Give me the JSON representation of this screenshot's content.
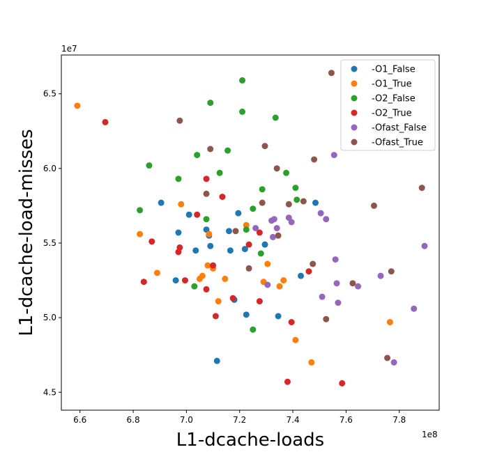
{
  "chart_data": {
    "type": "scatter",
    "title": "",
    "xlabel": "L1-dcache-loads",
    "ylabel": "L1-dcache-load-misses",
    "x_offset_label": "1e8",
    "y_offset_label": "1e7",
    "xlim": [
      6.53,
      7.95
    ],
    "ylim": [
      4.38,
      6.76
    ],
    "x_scale_factor": 100000000,
    "y_scale_factor": 10000000,
    "xticks": [
      "6.6",
      "6.8",
      "7.0",
      "7.2",
      "7.4",
      "7.6",
      "7.8"
    ],
    "xtick_values": [
      6.6,
      6.8,
      7.0,
      7.2,
      7.4,
      7.6,
      7.8
    ],
    "yticks": [
      "4.5",
      "5.0",
      "5.5",
      "6.0",
      "6.5"
    ],
    "ytick_values": [
      4.5,
      5.0,
      5.5,
      6.0,
      6.5
    ],
    "grid": false,
    "legend_position": "top-right",
    "series": [
      {
        "name": "-O1_False",
        "color": "#1f77b4",
        "points": [
          [
            6.905,
            5.77
          ],
          [
            6.96,
            5.25
          ],
          [
            6.97,
            5.57
          ],
          [
            7.01,
            5.69
          ],
          [
            7.035,
            5.45
          ],
          [
            7.075,
            5.59
          ],
          [
            7.085,
            5.55
          ],
          [
            7.09,
            5.48
          ],
          [
            7.115,
            4.71
          ],
          [
            7.16,
            5.58
          ],
          [
            7.165,
            5.45
          ],
          [
            7.18,
            5.12
          ],
          [
            7.195,
            5.7
          ],
          [
            7.22,
            5.46
          ],
          [
            7.225,
            5.02
          ],
          [
            7.295,
            5.49
          ],
          [
            7.345,
            5.01
          ],
          [
            7.43,
            5.28
          ],
          [
            7.485,
            5.77
          ]
        ]
      },
      {
        "name": "-O1_True",
        "color": "#ff7f0e",
        "points": [
          [
            6.59,
            6.42
          ],
          [
            6.825,
            5.56
          ],
          [
            6.89,
            5.3
          ],
          [
            6.98,
            5.76
          ],
          [
            7.05,
            5.26
          ],
          [
            7.06,
            5.28
          ],
          [
            7.08,
            5.35
          ],
          [
            7.085,
            5.56
          ],
          [
            7.1,
            5.33
          ],
          [
            7.12,
            5.11
          ],
          [
            7.145,
            5.26
          ],
          [
            7.225,
            5.62
          ],
          [
            7.29,
            5.24
          ],
          [
            7.305,
            5.36
          ],
          [
            7.35,
            5.21
          ],
          [
            7.365,
            5.25
          ],
          [
            7.41,
            4.85
          ],
          [
            7.47,
            4.7
          ],
          [
            7.765,
            4.97
          ]
        ]
      },
      {
        "name": "-O2_False",
        "color": "#2ca02c",
        "points": [
          [
            6.825,
            5.72
          ],
          [
            6.86,
            6.02
          ],
          [
            6.97,
            5.93
          ],
          [
            7.03,
            5.21
          ],
          [
            7.04,
            6.09
          ],
          [
            7.075,
            5.66
          ],
          [
            7.09,
            6.44
          ],
          [
            7.125,
            5.97
          ],
          [
            7.155,
            6.12
          ],
          [
            7.21,
            6.59
          ],
          [
            7.21,
            6.38
          ],
          [
            7.225,
            5.59
          ],
          [
            7.25,
            5.73
          ],
          [
            7.25,
            4.92
          ],
          [
            7.28,
            5.43
          ],
          [
            7.285,
            5.86
          ],
          [
            7.335,
            6.34
          ],
          [
            7.375,
            5.97
          ],
          [
            7.41,
            5.87
          ],
          [
            7.415,
            5.79
          ]
        ]
      },
      {
        "name": "-O2_True",
        "color": "#d62728",
        "points": [
          [
            6.695,
            6.31
          ],
          [
            6.84,
            5.24
          ],
          [
            6.87,
            5.51
          ],
          [
            6.97,
            5.44
          ],
          [
            6.975,
            5.47
          ],
          [
            6.995,
            5.25
          ],
          [
            7.04,
            5.69
          ],
          [
            7.075,
            5.19
          ],
          [
            7.075,
            5.93
          ],
          [
            7.1,
            5.35
          ],
          [
            7.11,
            5.01
          ],
          [
            7.135,
            5.81
          ],
          [
            7.175,
            5.13
          ],
          [
            7.235,
            5.49
          ],
          [
            7.275,
            5.57
          ],
          [
            7.275,
            5.11
          ],
          [
            7.38,
            4.57
          ],
          [
            7.395,
            4.97
          ],
          [
            7.46,
            5.31
          ],
          [
            7.585,
            4.56
          ]
        ]
      },
      {
        "name": "-Ofast_False",
        "color": "#9467bd",
        "points": [
          [
            7.26,
            5.6
          ],
          [
            7.305,
            5.22
          ],
          [
            7.32,
            5.65
          ],
          [
            7.325,
            5.54
          ],
          [
            7.33,
            5.66
          ],
          [
            7.34,
            5.6
          ],
          [
            7.385,
            5.67
          ],
          [
            7.395,
            5.64
          ],
          [
            7.505,
            5.7
          ],
          [
            7.51,
            5.14
          ],
          [
            7.525,
            5.66
          ],
          [
            7.555,
            6.09
          ],
          [
            7.56,
            5.39
          ],
          [
            7.565,
            5.23
          ],
          [
            7.57,
            5.1
          ],
          [
            7.645,
            5.21
          ],
          [
            7.73,
            5.28
          ],
          [
            7.78,
            4.7
          ],
          [
            7.855,
            5.06
          ],
          [
            7.895,
            5.48
          ]
        ]
      },
      {
        "name": "-Ofast_True",
        "color": "#8c564b",
        "points": [
          [
            6.975,
            6.32
          ],
          [
            7.075,
            5.83
          ],
          [
            7.09,
            6.13
          ],
          [
            7.185,
            5.58
          ],
          [
            7.235,
            5.33
          ],
          [
            7.285,
            5.77
          ],
          [
            7.295,
            6.15
          ],
          [
            7.34,
            6.0
          ],
          [
            7.345,
            5.55
          ],
          [
            7.385,
            5.76
          ],
          [
            7.44,
            5.78
          ],
          [
            7.475,
            5.36
          ],
          [
            7.48,
            6.06
          ],
          [
            7.525,
            4.99
          ],
          [
            7.545,
            6.64
          ],
          [
            7.625,
            5.23
          ],
          [
            7.705,
            5.75
          ],
          [
            7.755,
            4.73
          ],
          [
            7.77,
            5.31
          ],
          [
            7.885,
            5.87
          ]
        ]
      }
    ]
  }
}
